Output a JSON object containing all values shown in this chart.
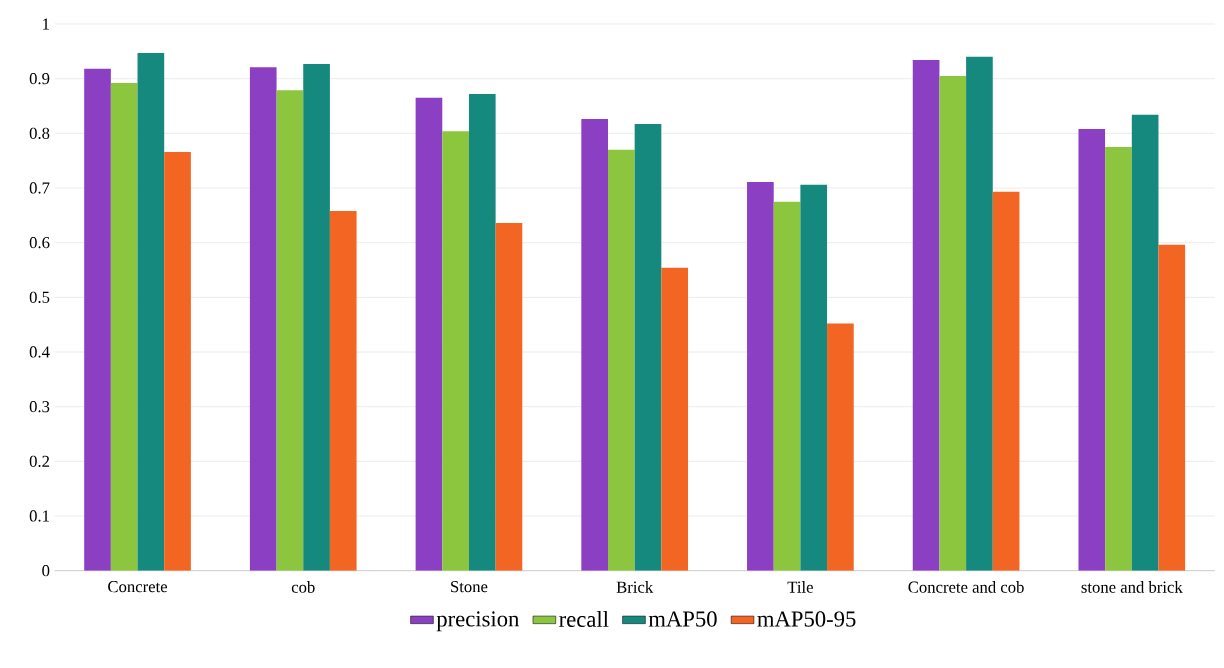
{
  "chart_data": {
    "type": "bar",
    "categories": [
      "Concrete",
      "cob",
      "Stone",
      "Brick",
      "Tile",
      "Concrete and cob",
      "stone and brick"
    ],
    "series": [
      {
        "name": "precision",
        "color": "#8b3fc2",
        "values": [
          0.918,
          0.921,
          0.865,
          0.826,
          0.711,
          0.934,
          0.808
        ]
      },
      {
        "name": "recall",
        "color": "#8cc63f",
        "values": [
          0.892,
          0.879,
          0.804,
          0.77,
          0.675,
          0.905,
          0.775
        ]
      },
      {
        "name": "mAP50",
        "color": "#16897f",
        "values": [
          0.947,
          0.927,
          0.872,
          0.817,
          0.706,
          0.94,
          0.834
        ]
      },
      {
        "name": "mAP50-95",
        "color": "#f26522",
        "values": [
          0.766,
          0.658,
          0.636,
          0.554,
          0.452,
          0.693,
          0.596
        ]
      }
    ],
    "ylim": [
      0,
      1
    ],
    "yticks": [
      0,
      0.1,
      0.2,
      0.3,
      0.4,
      0.5,
      0.6,
      0.7,
      0.8,
      0.9,
      1
    ],
    "grid": "y",
    "legend": "bottom"
  }
}
